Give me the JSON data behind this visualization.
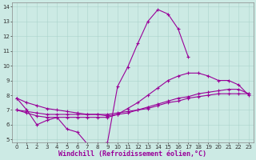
{
  "xlabel": "Windchill (Refroidissement éolien,°C)",
  "bg_color": "#cceae4",
  "line_color": "#990099",
  "grid_color": "#aad4cc",
  "xlim": [
    -0.5,
    23.5
  ],
  "ylim": [
    4.8,
    14.3
  ],
  "xticks": [
    0,
    1,
    2,
    3,
    4,
    5,
    6,
    7,
    8,
    9,
    10,
    11,
    12,
    13,
    14,
    15,
    16,
    17,
    18,
    19,
    20,
    21,
    22,
    23
  ],
  "yticks": [
    5,
    6,
    7,
    8,
    9,
    10,
    11,
    12,
    13,
    14
  ],
  "tick_fontsize": 5.0,
  "xlabel_fontsize": 6.0,
  "series": [
    {
      "x": [
        0,
        1,
        2,
        3,
        4,
        5,
        6,
        7,
        8,
        9,
        10,
        11,
        12,
        13,
        14,
        15,
        16,
        17
      ],
      "y": [
        7.8,
        7.0,
        6.0,
        6.3,
        6.5,
        5.7,
        5.5,
        4.7,
        4.7,
        4.8,
        8.6,
        9.9,
        11.5,
        13.0,
        13.8,
        13.5,
        12.5,
        10.6
      ]
    },
    {
      "x": [
        0,
        1,
        2,
        3,
        4,
        5,
        6,
        7,
        8,
        9,
        10,
        11,
        12,
        13,
        14,
        15,
        16,
        17,
        18,
        19,
        20,
        21,
        22,
        23
      ],
      "y": [
        7.0,
        6.8,
        6.6,
        6.5,
        6.5,
        6.5,
        6.5,
        6.5,
        6.5,
        6.5,
        6.7,
        7.1,
        7.5,
        8.0,
        8.5,
        9.0,
        9.3,
        9.5,
        9.5,
        9.3,
        9.0,
        9.0,
        8.7,
        8.0
      ]
    },
    {
      "x": [
        0,
        1,
        2,
        3,
        4,
        5,
        6,
        7,
        8,
        9,
        10,
        11,
        12,
        13,
        14,
        15,
        16,
        17,
        18,
        19,
        20,
        21,
        22,
        23
      ],
      "y": [
        7.0,
        6.9,
        6.8,
        6.7,
        6.7,
        6.7,
        6.7,
        6.7,
        6.7,
        6.7,
        6.8,
        6.9,
        7.0,
        7.2,
        7.4,
        7.6,
        7.8,
        7.9,
        8.1,
        8.2,
        8.3,
        8.4,
        8.4,
        8.1
      ]
    },
    {
      "x": [
        0,
        1,
        2,
        3,
        4,
        5,
        6,
        7,
        8,
        9,
        10,
        11,
        12,
        13,
        14,
        15,
        16,
        17,
        18,
        19,
        20,
        21,
        22,
        23
      ],
      "y": [
        7.8,
        7.5,
        7.3,
        7.1,
        7.0,
        6.9,
        6.8,
        6.7,
        6.7,
        6.6,
        6.7,
        6.8,
        7.0,
        7.1,
        7.3,
        7.5,
        7.6,
        7.8,
        7.9,
        8.0,
        8.1,
        8.1,
        8.1,
        8.1
      ]
    }
  ]
}
